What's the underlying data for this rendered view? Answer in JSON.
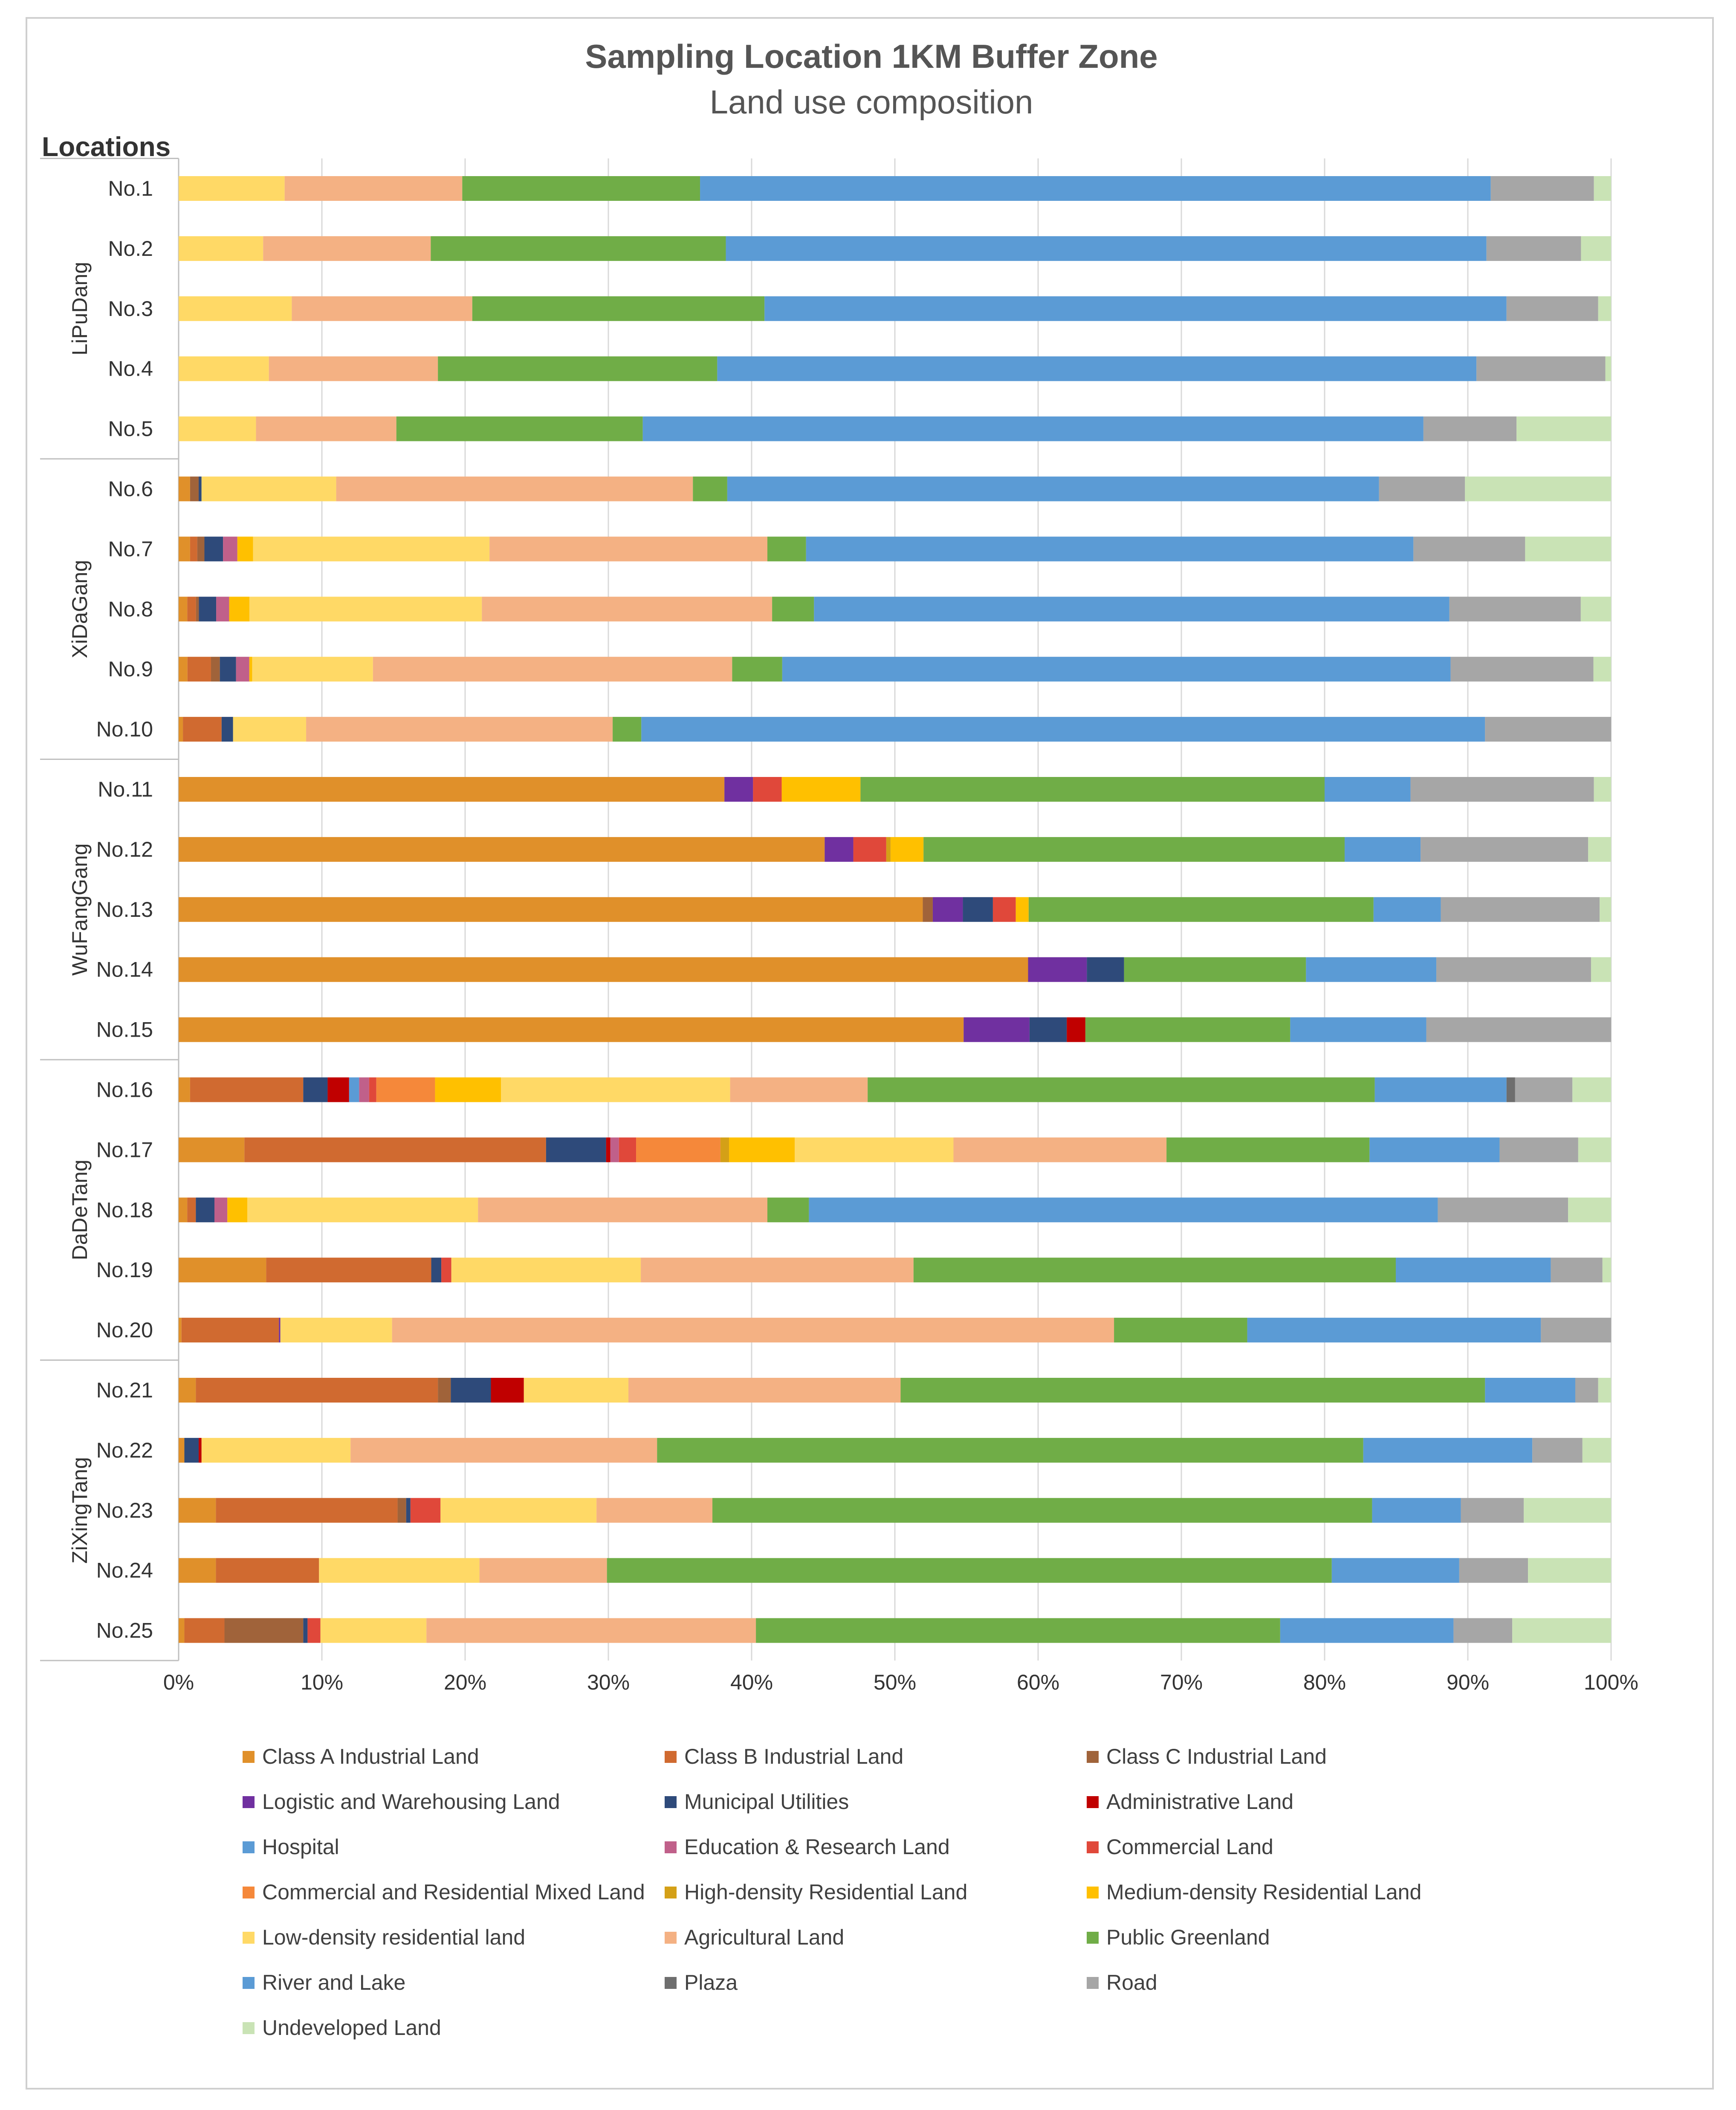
{
  "chart_data": {
    "type": "bar",
    "orientation": "horizontal",
    "stacked": "percent",
    "title": "Sampling Location 1KM Buffer Zone",
    "subtitle": "Land use composition",
    "ylabel": "Locations",
    "xlim": [
      0,
      100
    ],
    "x_ticks": [
      "0%",
      "10%",
      "20%",
      "30%",
      "40%",
      "50%",
      "60%",
      "70%",
      "80%",
      "90%",
      "100%"
    ],
    "grid": true,
    "legend_position": "bottom",
    "groups": [
      {
        "name": "LiPuDang",
        "categories": [
          "No.1",
          "No.2",
          "No.3",
          "No.4",
          "No.5"
        ]
      },
      {
        "name": "XiDaGang",
        "categories": [
          "No.6",
          "No.7",
          "No.8",
          "No.9",
          "No.10"
        ]
      },
      {
        "name": "WuFangGang",
        "categories": [
          "No.11",
          "No.12",
          "No.13",
          "No.14",
          "No.15"
        ]
      },
      {
        "name": "DaDeTang",
        "categories": [
          "No.16",
          "No.17",
          "No.18",
          "No.19",
          "No.20"
        ]
      },
      {
        "name": "ZiXingTang",
        "categories": [
          "No.21",
          "No.22",
          "No.23",
          "No.24",
          "No.25"
        ]
      }
    ],
    "categories": [
      "No.1",
      "No.2",
      "No.3",
      "No.4",
      "No.5",
      "No.6",
      "No.7",
      "No.8",
      "No.9",
      "No.10",
      "No.11",
      "No.12",
      "No.13",
      "No.14",
      "No.15",
      "No.16",
      "No.17",
      "No.18",
      "No.19",
      "No.20",
      "No.21",
      "No.22",
      "No.23",
      "No.24",
      "No.25"
    ],
    "series": [
      {
        "name": "Class A Industrial Land",
        "color": "#E0902A",
        "values": [
          0,
          0,
          0,
          0,
          0,
          0.8,
          0.8,
          0.6,
          0.6,
          0.3,
          38.1,
          45.1,
          52.0,
          59.3,
          54.8,
          0.8,
          4.6,
          0.6,
          6.1,
          0.2,
          1.2,
          0.4,
          2.6,
          2.6,
          0.4
        ]
      },
      {
        "name": "Class B Industrial Land",
        "color": "#D06A30",
        "values": [
          0,
          0,
          0,
          0,
          0,
          0,
          0.5,
          0.6,
          1.6,
          2.7,
          0,
          0,
          0,
          0,
          0,
          7.9,
          21.1,
          0.6,
          11.5,
          6.8,
          16.9,
          0,
          12.7,
          7.2,
          2.8
        ]
      },
      {
        "name": "Class C Industrial Land",
        "color": "#A0633A",
        "values": [
          0,
          0,
          0,
          0,
          0,
          0.6,
          0.5,
          0.2,
          0.6,
          0,
          0,
          0,
          0.7,
          0,
          0,
          0,
          0,
          0,
          0,
          0,
          0.9,
          0,
          0.6,
          0,
          5.5
        ]
      },
      {
        "name": "Logistic and Warehousing Land",
        "color": "#7030A0",
        "values": [
          0,
          0,
          0,
          0,
          0,
          0,
          0,
          0,
          0,
          0,
          2.0,
          2.0,
          2.1,
          4.1,
          4.6,
          0,
          0,
          0,
          0,
          0.1,
          0,
          0,
          0,
          0,
          0
        ]
      },
      {
        "name": "Municipal Utilities",
        "color": "#2E4A7A",
        "values": [
          0,
          0,
          0,
          0,
          0,
          0.2,
          1.3,
          1.2,
          1.1,
          0.8,
          0,
          0,
          2.1,
          2.6,
          2.6,
          1.7,
          4.2,
          1.3,
          0.7,
          0,
          2.8,
          1.0,
          0.3,
          0,
          0.3
        ]
      },
      {
        "name": "Administrative Land",
        "color": "#C00000",
        "values": [
          0,
          0,
          0,
          0,
          0,
          0,
          0,
          0,
          0,
          0,
          0,
          0,
          0,
          0,
          1.3,
          1.5,
          0.3,
          0,
          0,
          0,
          2.3,
          0.2,
          0,
          0,
          0
        ]
      },
      {
        "name": "Hospital",
        "color": "#5B9BD5",
        "values": [
          0,
          0,
          0,
          0,
          0,
          0,
          0,
          0,
          0,
          0,
          0,
          0,
          0,
          0,
          0,
          0.7,
          0,
          0,
          0,
          0,
          0,
          0,
          0,
          0,
          0
        ]
      },
      {
        "name": "Education & Research Land",
        "color": "#C0608A",
        "values": [
          0,
          0,
          0,
          0,
          0,
          0,
          1.0,
          0.9,
          0.9,
          0,
          0,
          0,
          0,
          0,
          0,
          0.7,
          0.6,
          0.9,
          0,
          0,
          0,
          0,
          0,
          0,
          0
        ]
      },
      {
        "name": "Commercial Land",
        "color": "#E0483A",
        "values": [
          0,
          0,
          0,
          0,
          0,
          0,
          0,
          0,
          0,
          0,
          2.0,
          2.3,
          1.6,
          0,
          0,
          0.5,
          1.2,
          0,
          0.7,
          0,
          0,
          0,
          2.1,
          0,
          0.9
        ]
      },
      {
        "name": "Commercial and Residential Mixed Land",
        "color": "#F5883A",
        "values": [
          0,
          0,
          0,
          0,
          0,
          0,
          0,
          0,
          0,
          0,
          0,
          0,
          0,
          0,
          0,
          4.1,
          5.9,
          0,
          0,
          0,
          0,
          0,
          0,
          0,
          0
        ]
      },
      {
        "name": "High-density Residential Land",
        "color": "#D4A017",
        "values": [
          0,
          0,
          0,
          0,
          0,
          0,
          0,
          0,
          0,
          0,
          0,
          0.3,
          0,
          0,
          0,
          0,
          0.6,
          0,
          0,
          0,
          0,
          0,
          0,
          0,
          0
        ]
      },
      {
        "name": "Medium-density Residential Land",
        "color": "#FFC000",
        "values": [
          0,
          0,
          0,
          0,
          0,
          0,
          1.1,
          1.4,
          0.2,
          0,
          5.5,
          2.3,
          0.9,
          0,
          0,
          4.6,
          4.6,
          1.4,
          0,
          0,
          0,
          0,
          0,
          0,
          0
        ]
      },
      {
        "name": "Low-density residential land",
        "color": "#FFD966",
        "values": [
          7.4,
          5.9,
          7.9,
          6.3,
          5.4,
          9.4,
          16.5,
          16.1,
          8.2,
          5.1,
          0,
          0,
          0,
          0,
          0,
          16.0,
          11.1,
          16.1,
          13.2,
          7.8,
          7.3,
          10.4,
          10.9,
          11.2,
          7.4
        ]
      },
      {
        "name": "Agricultural Land",
        "color": "#F4B183",
        "values": [
          12.4,
          11.7,
          12.6,
          11.8,
          9.8,
          24.9,
          19.4,
          20.1,
          24.4,
          21.4,
          0,
          0,
          0,
          0,
          0,
          9.6,
          14.9,
          20.2,
          19.0,
          50.4,
          19.0,
          21.4,
          8.1,
          8.9,
          23.0
        ]
      },
      {
        "name": "Public Greenland",
        "color": "#70AD47",
        "values": [
          16.6,
          20.6,
          20.4,
          19.5,
          17.2,
          2.4,
          2.7,
          2.9,
          3.4,
          2.0,
          32.4,
          29.4,
          24.1,
          12.7,
          14.3,
          35.4,
          14.2,
          2.9,
          33.6,
          9.3,
          40.8,
          49.3,
          46.1,
          50.6,
          36.6
        ]
      },
      {
        "name": "River and Lake",
        "color": "#5B9BD5",
        "values": [
          55.2,
          53.1,
          51.8,
          53.0,
          54.5,
          45.5,
          42.4,
          44.0,
          45.4,
          58.9,
          6.0,
          5.3,
          4.7,
          9.1,
          9.5,
          9.2,
          9.1,
          43.9,
          10.8,
          20.5,
          6.3,
          11.8,
          6.2,
          8.9,
          12.1
        ]
      },
      {
        "name": "Plaza",
        "color": "#6E6E6E",
        "values": [
          0,
          0,
          0,
          0,
          0,
          0,
          0,
          0,
          0,
          0,
          0,
          0,
          0,
          0,
          0,
          0.6,
          0,
          0,
          0,
          0,
          0,
          0,
          0,
          0,
          0
        ]
      },
      {
        "name": "Road",
        "color": "#A6A6A6",
        "values": [
          7.2,
          6.6,
          6.4,
          9.0,
          6.5,
          6.0,
          7.8,
          9.1,
          9.7,
          8.8,
          12.8,
          11.7,
          11.1,
          10.8,
          12.9,
          4.0,
          5.5,
          9.1,
          3.6,
          4.9,
          1.6,
          3.5,
          4.4,
          4.8,
          4.1
        ]
      },
      {
        "name": "Undeveloped Land",
        "color": "#C9E3B5",
        "values": [
          1.2,
          2.1,
          0.9,
          0.4,
          6.6,
          10.2,
          6.0,
          2.1,
          1.2,
          0,
          1.2,
          1.6,
          0.8,
          1.4,
          0,
          2.7,
          2.3,
          3.0,
          0.6,
          0,
          0.9,
          2.0,
          6.1,
          5.8,
          6.9
        ]
      }
    ]
  }
}
